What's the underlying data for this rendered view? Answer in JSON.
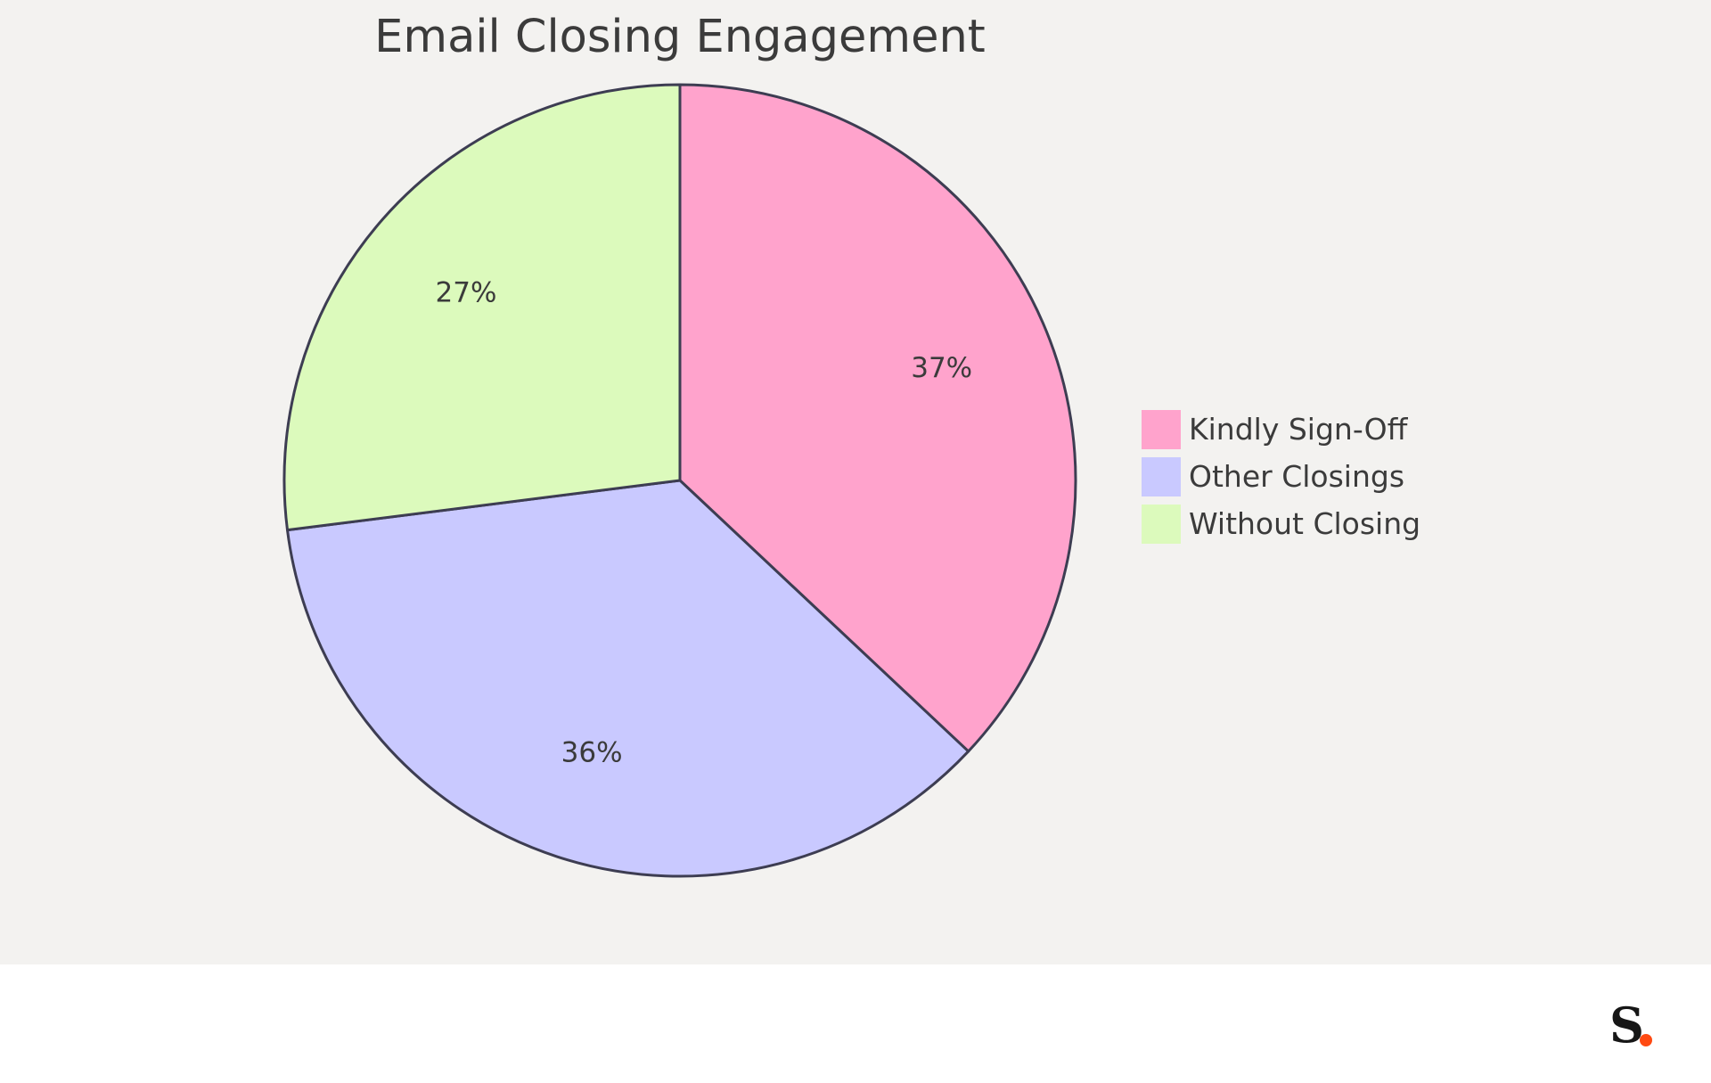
{
  "chart_data": {
    "type": "pie",
    "title": "Email Closing Engagement",
    "categories": [
      "Kindly Sign-Off",
      "Other Closings",
      "Without Closing"
    ],
    "values": [
      37,
      36,
      27
    ],
    "labels": [
      "37%",
      "36%",
      "27%"
    ],
    "colors": [
      "#ffa3cc",
      "#c9c9ff",
      "#dcfabc"
    ],
    "edge_color": "#3d3d52",
    "legend_position": "right"
  },
  "background_color": "#f3f2f0",
  "footer": {
    "logo_letter": "S",
    "logo_dot_color": "#ff4a12"
  }
}
